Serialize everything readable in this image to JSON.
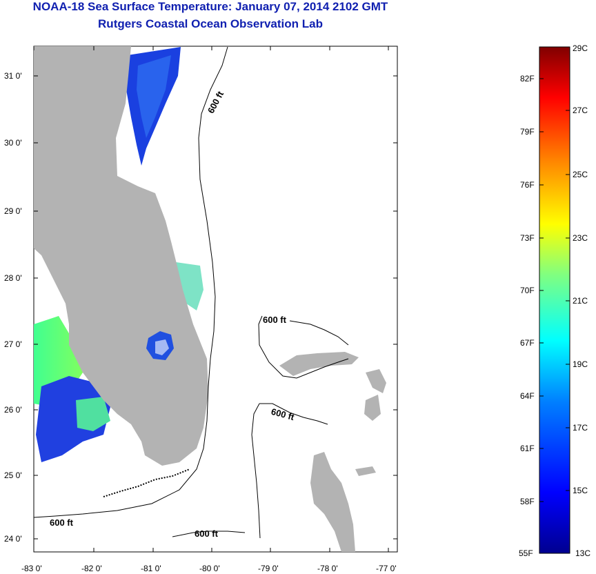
{
  "title": {
    "line1": "NOAA-18 Sea Surface Temperature:  January 07, 2014 2102 GMT",
    "line2": "Rutgers Coastal Ocean Observation Lab"
  },
  "map": {
    "lat_labels": [
      "31 0'",
      "30 0'",
      "29 0'",
      "28 0'",
      "27 0'",
      "26 0'",
      "25 0'",
      "24 0'"
    ],
    "lon_labels": [
      "-83 0'",
      "-82 0'",
      "-81 0'",
      "-80 0'",
      "-79 0'",
      "-78 0'",
      "-77 0'"
    ],
    "land_color": "#b3b3b3",
    "contour_label": "600 ft"
  },
  "colorbar": {
    "top_label": "29C",
    "bottom_labels": [
      "55F",
      "13C"
    ],
    "fahrenheit": [
      "82F",
      "79F",
      "76F",
      "73F",
      "70F",
      "67F",
      "64F",
      "61F",
      "58F"
    ],
    "celsius": [
      "27C",
      "25C",
      "23C",
      "21C",
      "19C",
      "17C",
      "15C"
    ],
    "colors": [
      "#00008f",
      "#0000ff",
      "#0080ff",
      "#00ffff",
      "#80ff80",
      "#ffff00",
      "#ff8000",
      "#ff0000",
      "#800000"
    ]
  }
}
